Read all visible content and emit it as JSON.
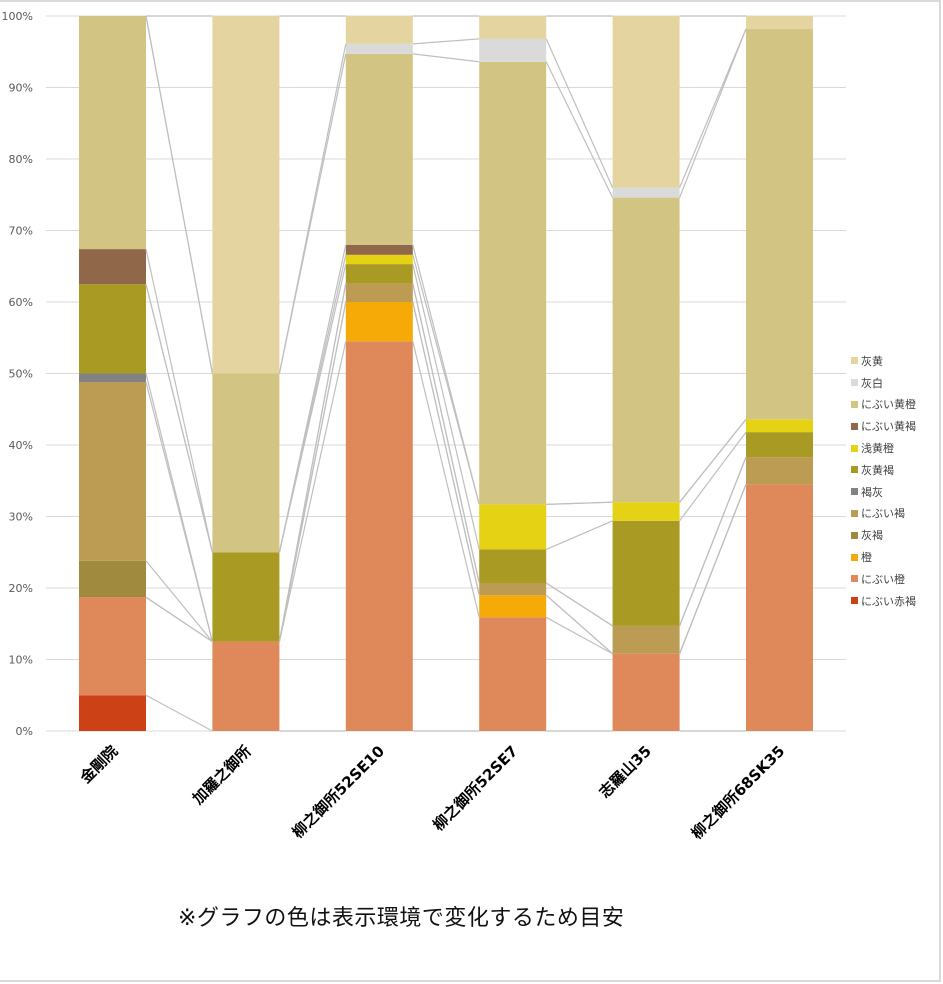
{
  "chart_data": {
    "type": "bar",
    "stacked": true,
    "percent": true,
    "title": "",
    "xlabel": "",
    "ylabel": "",
    "ylim": [
      0,
      100
    ],
    "y_ticks": [
      "0%",
      "10%",
      "20%",
      "30%",
      "40%",
      "50%",
      "60%",
      "70%",
      "80%",
      "90%",
      "100%"
    ],
    "grid": true,
    "series_lines": true,
    "legend_position": "right",
    "categories": [
      "金剛院",
      "加羅之御所",
      "柳之御所52SE10",
      "柳之御所52SE7",
      "志羅山35",
      "柳之御所68SK35"
    ],
    "series": [
      {
        "name": "にぶい赤褐",
        "color": "#CC4116",
        "values": [
          5.0,
          0,
          0,
          0,
          0,
          0
        ]
      },
      {
        "name": "にぶい橙",
        "color": "#DF885A",
        "values": [
          13.7,
          12.5,
          54.5,
          15.9,
          10.8,
          34.5
        ]
      },
      {
        "name": "橙",
        "color": "#F5AA08",
        "values": [
          0,
          0,
          5.5,
          3.1,
          0,
          0
        ]
      },
      {
        "name": "灰褐",
        "color": "#A08A3E",
        "values": [
          5.1,
          0,
          0,
          0,
          0,
          0
        ]
      },
      {
        "name": "にぶい褐",
        "color": "#BB9C52",
        "values": [
          25.0,
          0,
          2.6,
          1.7,
          3.9,
          3.8
        ]
      },
      {
        "name": "褐灰",
        "color": "#828282",
        "values": [
          1.2,
          0,
          0,
          0,
          0,
          0
        ]
      },
      {
        "name": "灰黄褐",
        "color": "#A99A24",
        "values": [
          12.5,
          12.5,
          2.7,
          4.7,
          14.7,
          3.5
        ]
      },
      {
        "name": "浅黄橙",
        "color": "#E5D214",
        "values": [
          0,
          0,
          1.3,
          6.3,
          2.6,
          1.8
        ]
      },
      {
        "name": "にぶい黄褐",
        "color": "#906749",
        "values": [
          4.9,
          0,
          1.4,
          0,
          0,
          0
        ]
      },
      {
        "name": "にぶい黄橙",
        "color": "#D2C584",
        "values": [
          32.6,
          25.0,
          26.7,
          61.9,
          42.6,
          54.6
        ]
      },
      {
        "name": "灰白",
        "color": "#DADADA",
        "values": [
          0,
          0,
          1.4,
          3.2,
          1.4,
          0
        ]
      },
      {
        "name": "灰黄",
        "color": "#E3D4A0",
        "values": [
          0,
          50.0,
          3.9,
          3.2,
          24.0,
          1.8
        ]
      }
    ]
  },
  "legend": {
    "items": [
      {
        "label": "灰黄",
        "color": "#E3D4A0"
      },
      {
        "label": "灰白",
        "color": "#DADADA"
      },
      {
        "label": "にぶい黄橙",
        "color": "#D2C584"
      },
      {
        "label": "にぶい黄褐",
        "color": "#906749"
      },
      {
        "label": "浅黄橙",
        "color": "#E5D214"
      },
      {
        "label": "灰黄褐",
        "color": "#A99A24"
      },
      {
        "label": "褐灰",
        "color": "#828282"
      },
      {
        "label": "にぶい褐",
        "color": "#BB9C52"
      },
      {
        "label": "灰褐",
        "color": "#A08A3E"
      },
      {
        "label": "橙",
        "color": "#F5AA08"
      },
      {
        "label": "にぶい橙",
        "color": "#DF885A"
      },
      {
        "label": "にぶい赤褐",
        "color": "#CC4116"
      }
    ]
  },
  "footnote": "※グラフの色は表示環境で変化するため目安"
}
